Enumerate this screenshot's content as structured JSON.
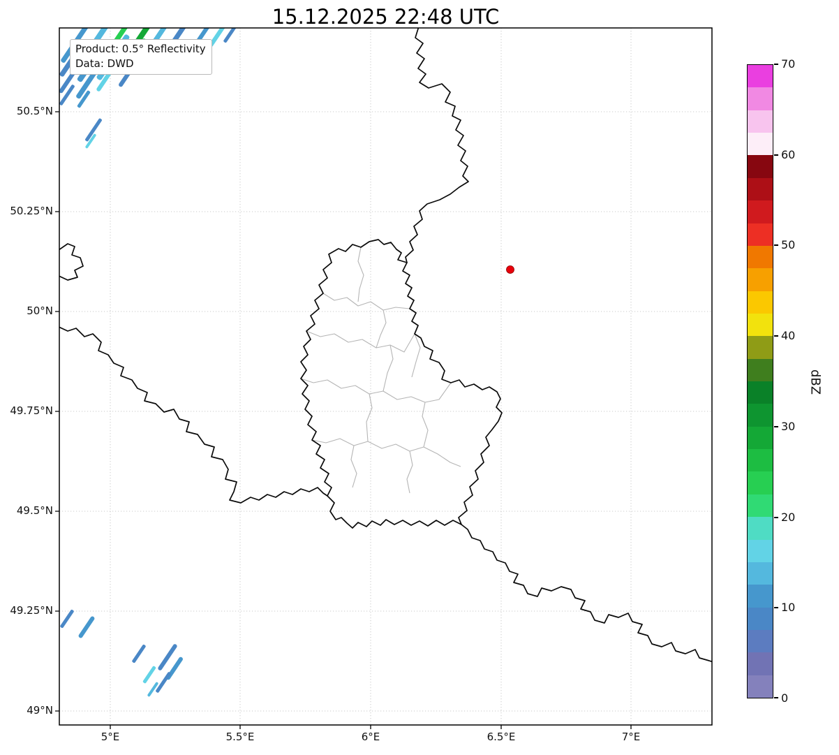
{
  "title": "15.12.2025 22:48 UTC",
  "info_box": {
    "product": "Product: 0.5° Reflectivity",
    "source": "Data: DWD"
  },
  "axes": {
    "x_ticks": [
      "5°E",
      "5.5°E",
      "6°E",
      "6.5°E",
      "7°E"
    ],
    "y_ticks": [
      "50.5°N",
      "50.25°N",
      "50°N",
      "49.75°N",
      "49.5°N",
      "49.25°N",
      "49°N"
    ]
  },
  "colorbar": {
    "label": "dBZ",
    "min": 0,
    "max": 70,
    "ticks": [
      "70",
      "60",
      "50",
      "40",
      "30",
      "20",
      "10",
      "0"
    ],
    "stops": [
      "#8481bc",
      "#7173b4",
      "#5c7cc0",
      "#4a87c6",
      "#4697cd",
      "#54b8de",
      "#62d3e6",
      "#4fdcc4",
      "#30da74",
      "#27cf52",
      "#1dbd42",
      "#14a836",
      "#0e9530",
      "#0a8128",
      "#3f7e1e",
      "#8f9c16",
      "#f2e20d",
      "#fbc800",
      "#f7a000",
      "#f07800",
      "#ed2f24",
      "#d01a1e",
      "#ad0f16",
      "#870710",
      "#fdeef8",
      "#f8c4ee",
      "#f189e3",
      "#ea3fe0"
    ]
  },
  "marker": {
    "name": "radar site",
    "color": "#e8000b"
  }
}
